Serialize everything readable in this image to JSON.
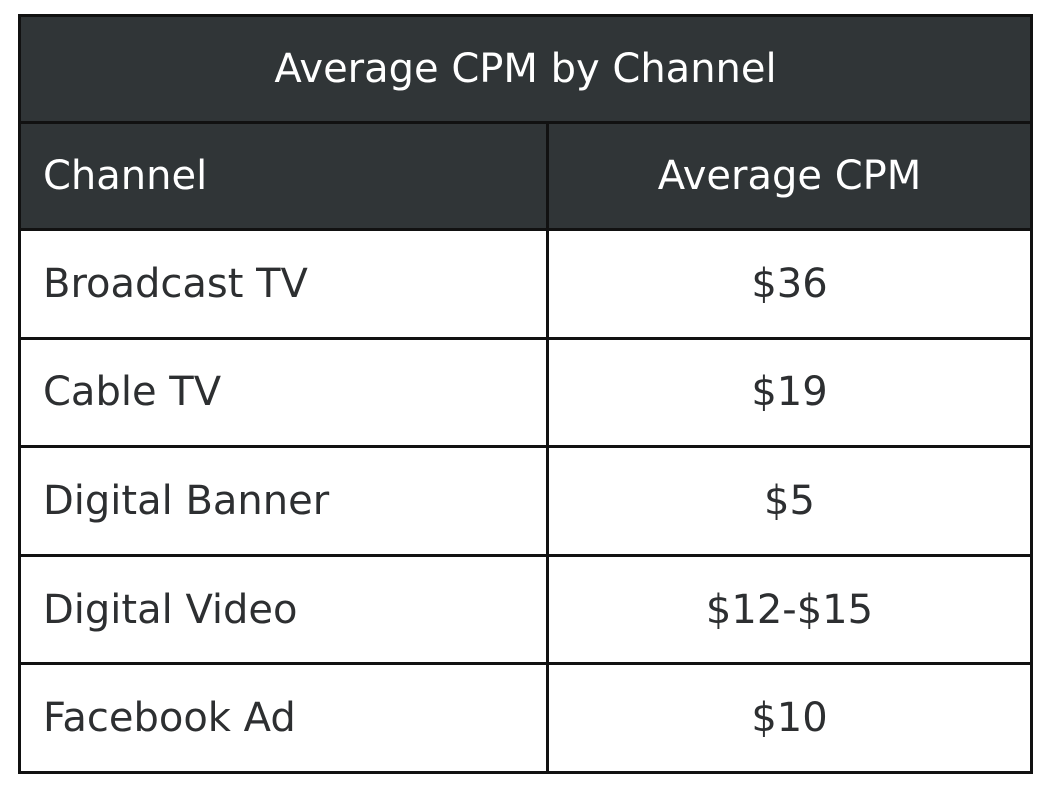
{
  "chart_data": {
    "type": "table",
    "title": "Average CPM by Channel",
    "columns": [
      "Channel",
      "Average CPM"
    ],
    "rows": [
      [
        "Broadcast TV",
        "$36"
      ],
      [
        "Cable TV",
        "$19"
      ],
      [
        "Digital Banner",
        "$5"
      ],
      [
        "Digital Video",
        "$12-$15"
      ],
      [
        "Facebook Ad",
        "$10"
      ]
    ]
  },
  "colors": {
    "header_background": "#303537",
    "header_text": "#ffffff",
    "border": "#111111",
    "body_text": "#2d2f31",
    "body_background": "#ffffff"
  }
}
